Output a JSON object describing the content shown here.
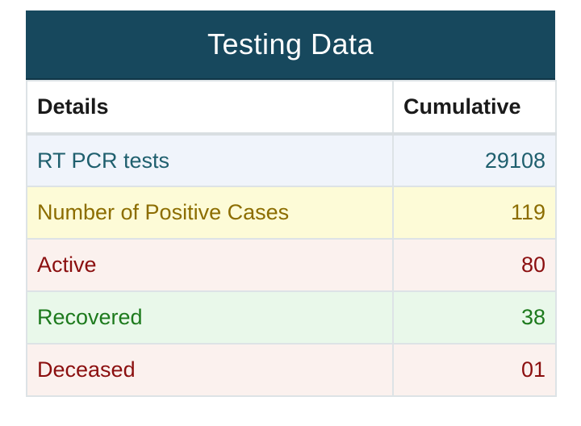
{
  "title": "Testing Data",
  "headers": [
    "Details",
    "Cumulative"
  ],
  "rows": [
    {
      "label": "RT PCR tests",
      "value": "29108",
      "color": "#1f5f6e",
      "bg": "#f0f4fb"
    },
    {
      "label": "Number of Positive Cases",
      "value": "119",
      "color": "#8c6d00",
      "bg": "#fdfbd7"
    },
    {
      "label": "Active",
      "value": "80",
      "color": "#8b0f0f",
      "bg": "#fbf1ee"
    },
    {
      "label": "Recovered",
      "value": "38",
      "color": "#1d7a1d",
      "bg": "#e9f8ea"
    },
    {
      "label": "Deceased",
      "value": "01",
      "color": "#8b0f0f",
      "bg": "#fbf1ee"
    }
  ]
}
